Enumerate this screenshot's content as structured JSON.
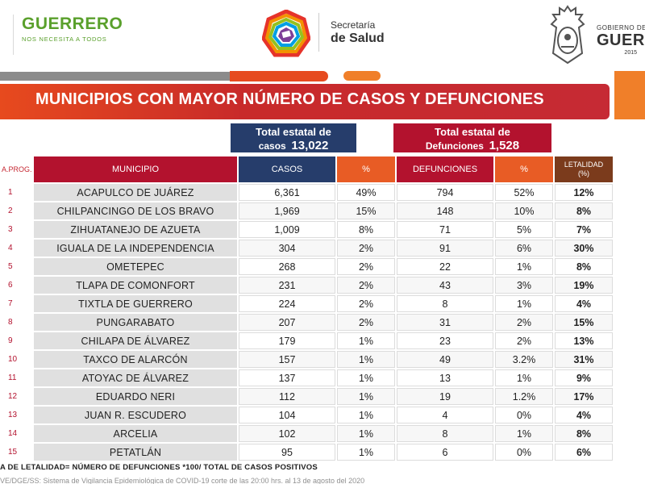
{
  "header": {
    "brand_title": "GUERRERO",
    "brand_subtitle": "NOS NECESITA A TODOS",
    "secretaria_line1": "Secretaría",
    "secretaria_line2": "de Salud",
    "gobierno_line1": "GOBIERNO DE",
    "gobierno_line2": "GUER",
    "gobierno_line3": "2015"
  },
  "title": "MUNICIPIOS CON MAYOR NÚMERO  DE CASOS Y DEFUNCIONES",
  "totals": {
    "cases_line1": "Total estatal de",
    "cases_line2": "casos",
    "cases_value": "13,022",
    "deaths_line1": "Total estatal de",
    "deaths_line2": "Defunciones",
    "deaths_value": "1,528"
  },
  "table": {
    "headers": {
      "num": "A.PROG.",
      "municipio": "MUNICIPIO",
      "casos": "CASOS",
      "pct_casos": "%",
      "defunciones": "DEFUNCIONES",
      "pct_def": "%",
      "letalidad": "LETALIDAD",
      "letalidad_unit": "(%)"
    },
    "rows": [
      {
        "num": "1",
        "municipio": "ACAPULCO DE JUÁREZ",
        "casos": "6,361",
        "pct_casos": "49%",
        "defunciones": "794",
        "pct_def": "52%",
        "letalidad": "12%"
      },
      {
        "num": "2",
        "municipio": "CHILPANCINGO DE LOS BRAVO",
        "casos": "1,969",
        "pct_casos": "15%",
        "defunciones": "148",
        "pct_def": "10%",
        "letalidad": "8%"
      },
      {
        "num": "3",
        "municipio": "ZIHUATANEJO DE AZUETA",
        "casos": "1,009",
        "pct_casos": "8%",
        "defunciones": "71",
        "pct_def": "5%",
        "letalidad": "7%"
      },
      {
        "num": "4",
        "municipio": "IGUALA DE LA INDEPENDENCIA",
        "casos": "304",
        "pct_casos": "2%",
        "defunciones": "91",
        "pct_def": "6%",
        "letalidad": "30%"
      },
      {
        "num": "5",
        "municipio": "OMETEPEC",
        "casos": "268",
        "pct_casos": "2%",
        "defunciones": "22",
        "pct_def": "1%",
        "letalidad": "8%"
      },
      {
        "num": "6",
        "municipio": "TLAPA DE COMONFORT",
        "casos": "231",
        "pct_casos": "2%",
        "defunciones": "43",
        "pct_def": "3%",
        "letalidad": "19%"
      },
      {
        "num": "7",
        "municipio": "TIXTLA DE GUERRERO",
        "casos": "224",
        "pct_casos": "2%",
        "defunciones": "8",
        "pct_def": "1%",
        "letalidad": "4%"
      },
      {
        "num": "8",
        "municipio": "PUNGARABATO",
        "casos": "207",
        "pct_casos": "2%",
        "defunciones": "31",
        "pct_def": "2%",
        "letalidad": "15%"
      },
      {
        "num": "9",
        "municipio": "CHILAPA DE ÁLVAREZ",
        "casos": "179",
        "pct_casos": "1%",
        "defunciones": "23",
        "pct_def": "2%",
        "letalidad": "13%"
      },
      {
        "num": "10",
        "municipio": "TAXCO DE ALARCÓN",
        "casos": "157",
        "pct_casos": "1%",
        "defunciones": "49",
        "pct_def": "3.2%",
        "letalidad": "31%"
      },
      {
        "num": "11",
        "municipio": "ATOYAC DE ÁLVAREZ",
        "casos": "137",
        "pct_casos": "1%",
        "defunciones": "13",
        "pct_def": "1%",
        "letalidad": "9%"
      },
      {
        "num": "12",
        "municipio": "EDUARDO NERI",
        "casos": "112",
        "pct_casos": "1%",
        "defunciones": "19",
        "pct_def": "1.2%",
        "letalidad": "17%"
      },
      {
        "num": "13",
        "municipio": "JUAN R. ESCUDERO",
        "casos": "104",
        "pct_casos": "1%",
        "defunciones": "4",
        "pct_def": "0%",
        "letalidad": "4%"
      },
      {
        "num": "14",
        "municipio": "ARCELIA",
        "casos": "102",
        "pct_casos": "1%",
        "defunciones": "8",
        "pct_def": "1%",
        "letalidad": "8%"
      },
      {
        "num": "15",
        "municipio": "PETATLÁN",
        "casos": "95",
        "pct_casos": "1%",
        "defunciones": "6",
        "pct_def": "0%",
        "letalidad": "6%"
      }
    ]
  },
  "footnote": "A DE LETALIDAD= NÚMERO DE DEFUNCIONES *100/ TOTAL DE CASOS POSITIVOS",
  "source": "VE/DGE/SS: Sistema de Vigilancia Epidemiológica de COVID-19 corte de las 20:00 hrs. al 13 de agosto del 2020",
  "colors": {
    "brand_green": "#5aa02c",
    "title_red": "#c62a34",
    "navy": "#263d6b",
    "crimson": "#b3122e",
    "orange": "#e85c25",
    "brown": "#7b3b1c"
  }
}
